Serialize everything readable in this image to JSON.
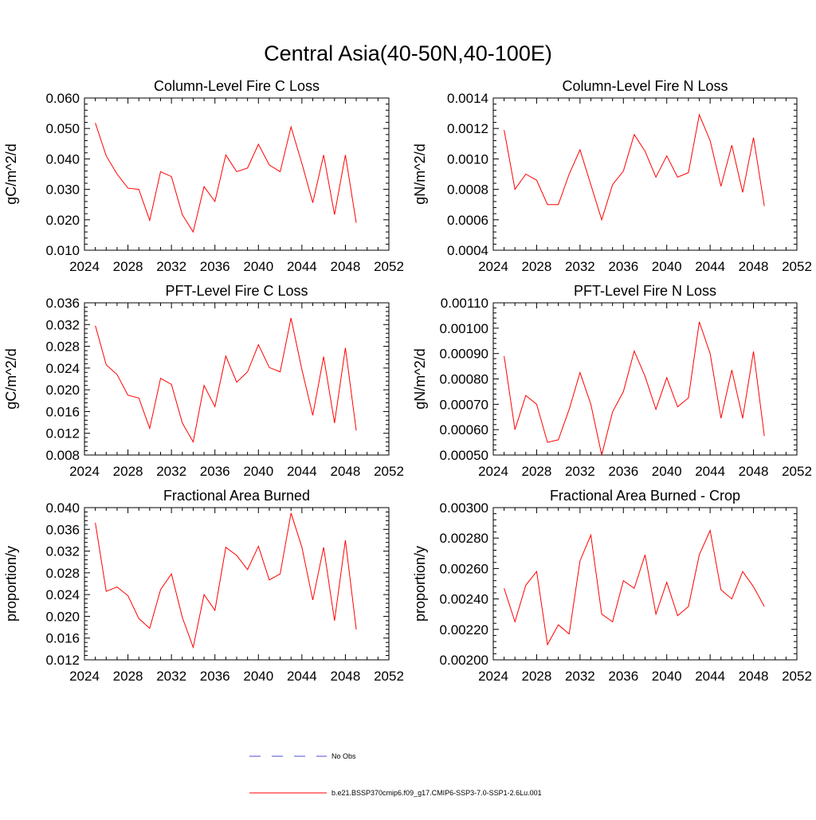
{
  "title": "Central Asia(40-50N,40-100E)",
  "colors": {
    "series": "#ff0000",
    "obs": "#4b4bd6",
    "axis": "#000000"
  },
  "legend": {
    "placement": "bottom-center",
    "items": [
      {
        "label": "No Obs",
        "style": "dashed",
        "color": "#4b4bd6"
      },
      {
        "label": "b.e21.BSSP370cmip6.f09_g17.CMIP6-SSP3-7.0-SSP1-2.6Lu.001",
        "style": "solid",
        "color": "#ff0000"
      }
    ]
  },
  "chart_data": [
    {
      "type": "line",
      "title": "Column-Level Fire C Loss",
      "ylabel": "gC/m^2/d",
      "xlim": [
        2024,
        2052
      ],
      "ylim": [
        0.01,
        0.06
      ],
      "xticks": [
        2024,
        2028,
        2032,
        2036,
        2040,
        2044,
        2048,
        2052
      ],
      "xtick_labels": [
        "2024",
        "2028",
        "2032",
        "2036",
        "2040",
        "2044",
        "2048",
        "2052"
      ],
      "yticks": [
        0.01,
        0.02,
        0.03,
        0.04,
        0.05,
        0.06
      ],
      "ytick_labels": [
        "0.010",
        "0.020",
        "0.030",
        "0.040",
        "0.050",
        "0.060"
      ],
      "x": [
        2025,
        2026,
        2027,
        2028,
        2029,
        2030,
        2031,
        2032,
        2033,
        2034,
        2035,
        2036,
        2037,
        2038,
        2039,
        2040,
        2041,
        2042,
        2043,
        2044,
        2045,
        2046,
        2047,
        2048,
        2049
      ],
      "series": [
        {
          "values": [
            0.0518,
            0.041,
            0.035,
            0.0304,
            0.03,
            0.0198,
            0.0358,
            0.0342,
            0.0217,
            0.016,
            0.0309,
            0.026,
            0.0413,
            0.0358,
            0.037,
            0.0448,
            0.038,
            0.0358,
            0.0505,
            0.0385,
            0.0256,
            0.0413,
            0.0217,
            0.0413,
            0.019
          ]
        }
      ]
    },
    {
      "type": "line",
      "title": "Column-Level Fire N Loss",
      "ylabel": "gN/m^2/d",
      "xlim": [
        2024,
        2052
      ],
      "ylim": [
        0.0004,
        0.0014
      ],
      "xticks": [
        2024,
        2028,
        2032,
        2036,
        2040,
        2044,
        2048,
        2052
      ],
      "xtick_labels": [
        "2024",
        "2028",
        "2032",
        "2036",
        "2040",
        "2044",
        "2048",
        "2052"
      ],
      "yticks": [
        0.0004,
        0.0006,
        0.0008,
        0.001,
        0.0012,
        0.0014
      ],
      "ytick_labels": [
        "0.0004",
        "0.0006",
        "0.0008",
        "0.0010",
        "0.0012",
        "0.0014"
      ],
      "x": [
        2025,
        2026,
        2027,
        2028,
        2029,
        2030,
        2031,
        2032,
        2033,
        2034,
        2035,
        2036,
        2037,
        2038,
        2039,
        2040,
        2041,
        2042,
        2043,
        2044,
        2045,
        2046,
        2047,
        2048,
        2049
      ],
      "series": [
        {
          "values": [
            0.00119,
            0.0008,
            0.0009,
            0.00086,
            0.0007,
            0.0007,
            0.0009,
            0.00106,
            0.00083,
            0.0006,
            0.00083,
            0.00092,
            0.00116,
            0.00105,
            0.00088,
            0.00102,
            0.00088,
            0.00091,
            0.00129,
            0.00112,
            0.00082,
            0.00109,
            0.00078,
            0.00114,
            0.00069
          ]
        }
      ]
    },
    {
      "type": "line",
      "title": "PFT-Level Fire C Loss",
      "ylabel": "gC/m^2/d",
      "xlim": [
        2024,
        2052
      ],
      "ylim": [
        0.008,
        0.036
      ],
      "xticks": [
        2024,
        2028,
        2032,
        2036,
        2040,
        2044,
        2048,
        2052
      ],
      "xtick_labels": [
        "2024",
        "2028",
        "2032",
        "2036",
        "2040",
        "2044",
        "2048",
        "2052"
      ],
      "yticks": [
        0.008,
        0.012,
        0.016,
        0.02,
        0.024,
        0.028,
        0.032,
        0.036
      ],
      "ytick_labels": [
        "0.008",
        "0.012",
        "0.016",
        "0.020",
        "0.024",
        "0.028",
        "0.032",
        "0.036"
      ],
      "x": [
        2025,
        2026,
        2027,
        2028,
        2029,
        2030,
        2031,
        2032,
        2033,
        2034,
        2035,
        2036,
        2037,
        2038,
        2039,
        2040,
        2041,
        2042,
        2043,
        2044,
        2045,
        2046,
        2047,
        2048,
        2049
      ],
      "series": [
        {
          "values": [
            0.0318,
            0.0246,
            0.0228,
            0.019,
            0.0185,
            0.0129,
            0.0221,
            0.021,
            0.0139,
            0.0104,
            0.0208,
            0.0169,
            0.0262,
            0.0214,
            0.0233,
            0.0283,
            0.0241,
            0.0233,
            0.0332,
            0.0237,
            0.0153,
            0.0261,
            0.0139,
            0.0277,
            0.0125
          ]
        }
      ]
    },
    {
      "type": "line",
      "title": "PFT-Level Fire N Loss",
      "ylabel": "gN/m^2/d",
      "xlim": [
        2024,
        2052
      ],
      "ylim": [
        0.0005,
        0.0011
      ],
      "xticks": [
        2024,
        2028,
        2032,
        2036,
        2040,
        2044,
        2048,
        2052
      ],
      "xtick_labels": [
        "2024",
        "2028",
        "2032",
        "2036",
        "2040",
        "2044",
        "2048",
        "2052"
      ],
      "yticks": [
        0.0005,
        0.0006,
        0.0007,
        0.0008,
        0.0009,
        0.001,
        0.0011
      ],
      "ytick_labels": [
        "0.00050",
        "0.00060",
        "0.00070",
        "0.00080",
        "0.00090",
        "0.00100",
        "0.00110"
      ],
      "x": [
        2025,
        2026,
        2027,
        2028,
        2029,
        2030,
        2031,
        2032,
        2033,
        2034,
        2035,
        2036,
        2037,
        2038,
        2039,
        2040,
        2041,
        2042,
        2043,
        2044,
        2045,
        2046,
        2047,
        2048,
        2049
      ],
      "series": [
        {
          "values": [
            0.00089,
            0.0006,
            0.000735,
            0.0007,
            0.00055,
            0.00056,
            0.00068,
            0.000825,
            0.0007,
            0.0005,
            0.00067,
            0.00075,
            0.00091,
            0.00081,
            0.00068,
            0.000805,
            0.00069,
            0.000725,
            0.001025,
            0.0009,
            0.000645,
            0.000835,
            0.000645,
            0.000908,
            0.000575
          ]
        }
      ]
    },
    {
      "type": "line",
      "title": "Fractional Area Burned",
      "ylabel": "proportion/y",
      "xlim": [
        2024,
        2052
      ],
      "ylim": [
        0.012,
        0.04
      ],
      "xticks": [
        2024,
        2028,
        2032,
        2036,
        2040,
        2044,
        2048,
        2052
      ],
      "xtick_labels": [
        "2024",
        "2028",
        "2032",
        "2036",
        "2040",
        "2044",
        "2048",
        "2052"
      ],
      "yticks": [
        0.012,
        0.016,
        0.02,
        0.024,
        0.028,
        0.032,
        0.036,
        0.04
      ],
      "ytick_labels": [
        "0.012",
        "0.016",
        "0.020",
        "0.024",
        "0.028",
        "0.032",
        "0.036",
        "0.040"
      ],
      "x": [
        2025,
        2026,
        2027,
        2028,
        2029,
        2030,
        2031,
        2032,
        2033,
        2034,
        2035,
        2036,
        2037,
        2038,
        2039,
        2040,
        2041,
        2042,
        2043,
        2044,
        2045,
        2046,
        2047,
        2048,
        2049
      ],
      "series": [
        {
          "values": [
            0.0372,
            0.0246,
            0.0254,
            0.0238,
            0.0196,
            0.0178,
            0.0249,
            0.0278,
            0.0198,
            0.0143,
            0.024,
            0.0211,
            0.0327,
            0.0312,
            0.0286,
            0.0329,
            0.0267,
            0.0278,
            0.039,
            0.0327,
            0.023,
            0.0327,
            0.0192,
            0.034,
            0.0176
          ]
        }
      ]
    },
    {
      "type": "line",
      "title": "Fractional Area Burned - Crop",
      "ylabel": "proportion/y",
      "xlim": [
        2024,
        2052
      ],
      "ylim": [
        0.002,
        0.003
      ],
      "xticks": [
        2024,
        2028,
        2032,
        2036,
        2040,
        2044,
        2048,
        2052
      ],
      "xtick_labels": [
        "2024",
        "2028",
        "2032",
        "2036",
        "2040",
        "2044",
        "2048",
        "2052"
      ],
      "yticks": [
        0.002,
        0.0022,
        0.0024,
        0.0026,
        0.0028,
        0.003
      ],
      "ytick_labels": [
        "0.00200",
        "0.00220",
        "0.00240",
        "0.00260",
        "0.00280",
        "0.00300"
      ],
      "x": [
        2025,
        2026,
        2027,
        2028,
        2029,
        2030,
        2031,
        2032,
        2033,
        2034,
        2035,
        2036,
        2037,
        2038,
        2039,
        2040,
        2041,
        2042,
        2043,
        2044,
        2045,
        2046,
        2047,
        2048,
        2049
      ],
      "series": [
        {
          "values": [
            0.00247,
            0.00225,
            0.00249,
            0.00258,
            0.0021,
            0.00223,
            0.00217,
            0.00265,
            0.00282,
            0.0023,
            0.00225,
            0.00252,
            0.00247,
            0.00269,
            0.0023,
            0.00251,
            0.00229,
            0.00235,
            0.00269,
            0.00285,
            0.00246,
            0.0024,
            0.00258,
            0.00248,
            0.00235
          ]
        }
      ]
    }
  ]
}
